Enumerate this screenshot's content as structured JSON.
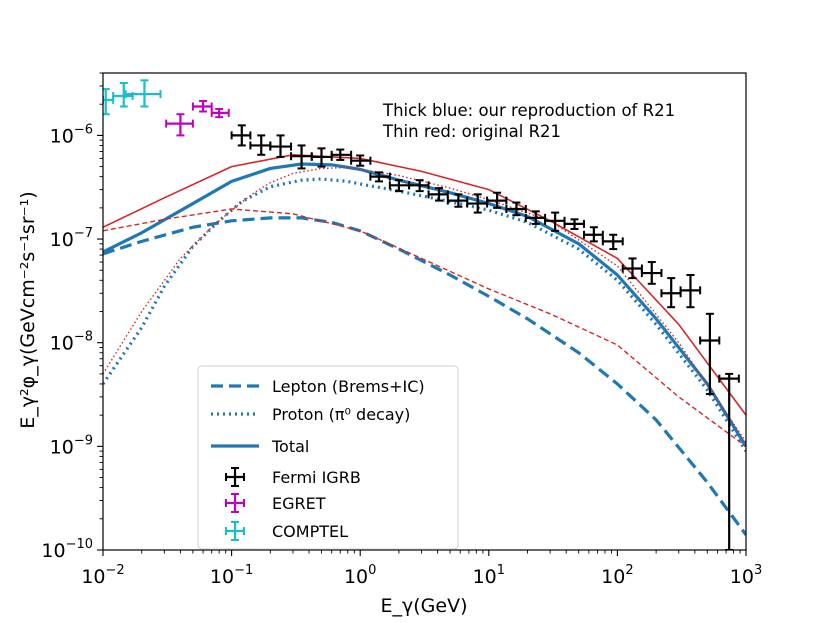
{
  "chart_data": {
    "type": "line",
    "xscale": "log",
    "yscale": "log",
    "xlim": [
      0.01,
      1000
    ],
    "ylim": [
      1e-10,
      4e-06
    ],
    "xlabel": "E_γ(GeV)",
    "ylabel": "E_γ²φ_γ(GeVcm⁻²s⁻¹sr⁻¹)",
    "x_tick_labels": [
      {
        "base": "10",
        "exp": "−2"
      },
      {
        "base": "10",
        "exp": "−1"
      },
      {
        "base": "10",
        "exp": "0"
      },
      {
        "base": "10",
        "exp": "1"
      },
      {
        "base": "10",
        "exp": "2"
      },
      {
        "base": "10",
        "exp": "3"
      }
    ],
    "x_tick_values": [
      0.01,
      0.1,
      1,
      10,
      100,
      1000
    ],
    "y_tick_labels": [
      {
        "base": "10",
        "exp": "−10"
      },
      {
        "base": "10",
        "exp": "−9"
      },
      {
        "base": "10",
        "exp": "−8"
      },
      {
        "base": "10",
        "exp": "−7"
      },
      {
        "base": "10",
        "exp": "−6"
      }
    ],
    "y_tick_values": [
      1e-10,
      1e-09,
      1e-08,
      1e-07,
      1e-06
    ],
    "annotations": [
      "Thick blue: our reproduction of R21",
      "Thin red: original R21"
    ],
    "legend_placement": "lower-center",
    "legend": [
      {
        "label": "Lepton (Brems+IC)",
        "style": "dashed-thick",
        "color": "#1f77b4"
      },
      {
        "label": "Proton (π⁰ decay)",
        "style": "dotted-thick",
        "color": "#1f77b4"
      },
      {
        "label": "Total",
        "style": "solid-thick",
        "color": "#1f77b4"
      },
      {
        "label": "Fermi IGRB",
        "style": "errorbar",
        "color": "#000000"
      },
      {
        "label": "EGRET",
        "style": "errorbar",
        "color": "#bf00bf"
      },
      {
        "label": "COMPTEL",
        "style": "errorbar",
        "color": "#17becf"
      }
    ],
    "colors": {
      "reproduction": "#1f77b4",
      "original": "#d62728",
      "fermi": "#000000",
      "egret": "#bf00bf",
      "comptel": "#17becf"
    },
    "series": [
      {
        "group": "reproduction",
        "style": "dashed-thick",
        "x": [
          0.01,
          0.02,
          0.05,
          0.1,
          0.2,
          0.35,
          0.6,
          1,
          2,
          5,
          10,
          20,
          50,
          100,
          200,
          500,
          1000
        ],
        "y": [
          7.2e-08,
          9.5e-08,
          1.3e-07,
          1.5e-07,
          1.6e-07,
          1.6e-07,
          1.45e-07,
          1.2e-07,
          8e-08,
          4.5e-08,
          2.8e-08,
          1.7e-08,
          8e-09,
          4e-09,
          1.8e-09,
          4.5e-10,
          1.4e-10
        ]
      },
      {
        "group": "reproduction",
        "style": "dotted-thick",
        "x": [
          0.01,
          0.02,
          0.03,
          0.05,
          0.08,
          0.12,
          0.2,
          0.35,
          0.5,
          0.8,
          1,
          2,
          5,
          10,
          20,
          50,
          100,
          200,
          500,
          1000
        ],
        "y": [
          4e-09,
          1.4e-08,
          3.5e-08,
          8.5e-08,
          1.5e-07,
          2.3e-07,
          3.2e-07,
          3.7e-07,
          3.8e-07,
          3.6e-07,
          3.4e-07,
          2.9e-07,
          2.3e-07,
          1.9e-07,
          1.45e-07,
          8e-08,
          4e-08,
          1.5e-08,
          3.5e-09,
          9e-10
        ]
      },
      {
        "group": "reproduction",
        "style": "solid-thick",
        "x": [
          0.01,
          0.02,
          0.05,
          0.1,
          0.2,
          0.35,
          0.6,
          1,
          2,
          5,
          10,
          20,
          50,
          100,
          200,
          500,
          1000
        ],
        "y": [
          7.5e-08,
          1.15e-07,
          2.2e-07,
          3.6e-07,
          4.8e-07,
          5.3e-07,
          5.2e-07,
          4.7e-07,
          3.7e-07,
          2.8e-07,
          2.2e-07,
          1.65e-07,
          9e-08,
          4.5e-08,
          1.7e-08,
          4e-09,
          1e-09
        ]
      },
      {
        "group": "original",
        "style": "dashed-thin",
        "x": [
          0.01,
          0.03,
          0.1,
          0.3,
          1,
          3,
          10,
          30,
          100,
          300,
          1000
        ],
        "y": [
          1.2e-07,
          1.55e-07,
          1.95e-07,
          1.75e-07,
          1.2e-07,
          6.5e-08,
          3.3e-08,
          1.9e-08,
          9.5e-09,
          3e-09,
          1e-09
        ]
      },
      {
        "group": "original",
        "style": "dotted-thin",
        "x": [
          0.01,
          0.02,
          0.04,
          0.07,
          0.1,
          0.15,
          0.2,
          0.3,
          0.5,
          0.8,
          1,
          2,
          5,
          10,
          30,
          100,
          300,
          1000
        ],
        "y": [
          5e-09,
          2e-08,
          6.5e-08,
          1.3e-07,
          1.9e-07,
          2.8e-07,
          3.5e-07,
          4.3e-07,
          4.8e-07,
          4.9e-07,
          4.7e-07,
          4.1e-07,
          3.1e-07,
          2.4e-07,
          1.5e-07,
          5.5e-08,
          1e-08,
          1.1e-09
        ]
      },
      {
        "group": "original",
        "style": "solid-thin",
        "x": [
          0.01,
          0.03,
          0.1,
          0.3,
          1,
          3,
          10,
          30,
          100,
          300,
          1000
        ],
        "y": [
          1.3e-07,
          2.5e-07,
          5e-07,
          6.5e-07,
          6e-07,
          4.5e-07,
          3e-07,
          1.5e-07,
          6.5e-08,
          1.5e-08,
          2e-09
        ]
      }
    ],
    "points": {
      "fermi": [
        {
          "x": 0.12,
          "y": 1e-06,
          "xerr": [
            0.1,
            0.14
          ],
          "yerr": [
            8e-07,
            1.25e-06
          ]
        },
        {
          "x": 0.17,
          "y": 8e-07,
          "xerr": [
            0.14,
            0.2
          ],
          "yerr": [
            6.5e-07,
            1e-06
          ]
        },
        {
          "x": 0.24,
          "y": 7.8e-07,
          "xerr": [
            0.2,
            0.29
          ],
          "yerr": [
            6.2e-07,
            1e-06
          ]
        },
        {
          "x": 0.35,
          "y": 6.3e-07,
          "xerr": [
            0.29,
            0.42
          ],
          "yerr": [
            4.8e-07,
            8e-07
          ]
        },
        {
          "x": 0.5,
          "y": 6.2e-07,
          "xerr": [
            0.42,
            0.6
          ],
          "yerr": [
            5e-07,
            7.5e-07
          ]
        },
        {
          "x": 0.7,
          "y": 6.5e-07,
          "xerr": [
            0.6,
            0.85
          ],
          "yerr": [
            5.8e-07,
            7.3e-07
          ]
        },
        {
          "x": 1.0,
          "y": 5.7e-07,
          "xerr": [
            0.85,
            1.2
          ],
          "yerr": [
            5.1e-07,
            6.4e-07
          ]
        },
        {
          "x": 1.4,
          "y": 4e-07,
          "xerr": [
            1.2,
            1.7
          ],
          "yerr": [
            3.6e-07,
            4.4e-07
          ]
        },
        {
          "x": 2.0,
          "y": 3.3e-07,
          "xerr": [
            1.7,
            2.4
          ],
          "yerr": [
            2.9e-07,
            3.7e-07
          ]
        },
        {
          "x": 2.9,
          "y": 3.3e-07,
          "xerr": [
            2.4,
            3.4
          ],
          "yerr": [
            2.9e-07,
            3.7e-07
          ]
        },
        {
          "x": 4.1,
          "y": 2.7e-07,
          "xerr": [
            3.4,
            4.8
          ],
          "yerr": [
            2.35e-07,
            3.1e-07
          ]
        },
        {
          "x": 5.8,
          "y": 2.35e-07,
          "xerr": [
            4.8,
            6.8
          ],
          "yerr": [
            2.05e-07,
            2.7e-07
          ]
        },
        {
          "x": 8.2,
          "y": 2.2e-07,
          "xerr": [
            6.8,
            9.7
          ],
          "yerr": [
            1.8e-07,
            2.7e-07
          ]
        },
        {
          "x": 11.6,
          "y": 2.35e-07,
          "xerr": [
            9.7,
            13.7
          ],
          "yerr": [
            2e-07,
            2.8e-07
          ]
        },
        {
          "x": 16.4,
          "y": 1.95e-07,
          "xerr": [
            13.7,
            19.4
          ],
          "yerr": [
            1.7e-07,
            2.25e-07
          ]
        },
        {
          "x": 23.2,
          "y": 1.6e-07,
          "xerr": [
            19.4,
            27.4
          ],
          "yerr": [
            1.4e-07,
            1.85e-07
          ]
        },
        {
          "x": 32.8,
          "y": 1.5e-07,
          "xerr": [
            27.4,
            38.8
          ],
          "yerr": [
            1.2e-07,
            1.8e-07
          ]
        },
        {
          "x": 46.4,
          "y": 1.4e-07,
          "xerr": [
            38.8,
            55
          ],
          "yerr": [
            1.25e-07,
            1.55e-07
          ]
        },
        {
          "x": 65.6,
          "y": 1.1e-07,
          "xerr": [
            55,
            77
          ],
          "yerr": [
            9.5e-08,
            1.3e-07
          ]
        },
        {
          "x": 92.8,
          "y": 9.5e-08,
          "xerr": [
            77,
            110
          ],
          "yerr": [
            8e-08,
            1.1e-07
          ]
        },
        {
          "x": 131,
          "y": 5.2e-08,
          "xerr": [
            110,
            155
          ],
          "yerr": [
            4.2e-08,
            6.5e-08
          ]
        },
        {
          "x": 185,
          "y": 4.7e-08,
          "xerr": [
            155,
            220
          ],
          "yerr": [
            3.7e-08,
            6e-08
          ]
        },
        {
          "x": 262,
          "y": 3e-08,
          "xerr": [
            220,
            310
          ],
          "yerr": [
            2.2e-08,
            4.2e-08
          ]
        },
        {
          "x": 370,
          "y": 3.2e-08,
          "xerr": [
            310,
            440
          ],
          "yerr": [
            2.2e-08,
            4.5e-08
          ]
        },
        {
          "x": 524,
          "y": 1.05e-08,
          "xerr": [
            440,
            620
          ],
          "yerr": [
            3.2e-09,
            1.9e-08
          ]
        },
        {
          "x": 740,
          "y": 4.5e-09,
          "xerr": [
            620,
            880
          ],
          "yerr": [
            1e-10,
            5e-09
          ]
        }
      ],
      "egret": [
        {
          "x": 0.04,
          "y": 1.3e-06,
          "xerr": [
            0.031,
            0.05
          ],
          "yerr": [
            1e-06,
            1.6e-06
          ]
        },
        {
          "x": 0.06,
          "y": 1.9e-06,
          "xerr": [
            0.05,
            0.07
          ],
          "yerr": [
            1.7e-06,
            2.15e-06
          ]
        },
        {
          "x": 0.08,
          "y": 1.65e-06,
          "xerr": [
            0.07,
            0.095
          ],
          "yerr": [
            1.5e-06,
            1.8e-06
          ]
        }
      ],
      "comptel": [
        {
          "x": 0.0105,
          "y": 2.2e-06,
          "xerr": [
            0.01,
            0.012
          ],
          "yerr": [
            1.6e-06,
            2.8e-06
          ]
        },
        {
          "x": 0.0145,
          "y": 2.4e-06,
          "xerr": [
            0.012,
            0.017
          ],
          "yerr": [
            1.9e-06,
            3.2e-06
          ]
        },
        {
          "x": 0.021,
          "y": 2.5e-06,
          "xerr": [
            0.015,
            0.028
          ],
          "yerr": [
            1.9e-06,
            3.4e-06
          ]
        }
      ]
    }
  }
}
